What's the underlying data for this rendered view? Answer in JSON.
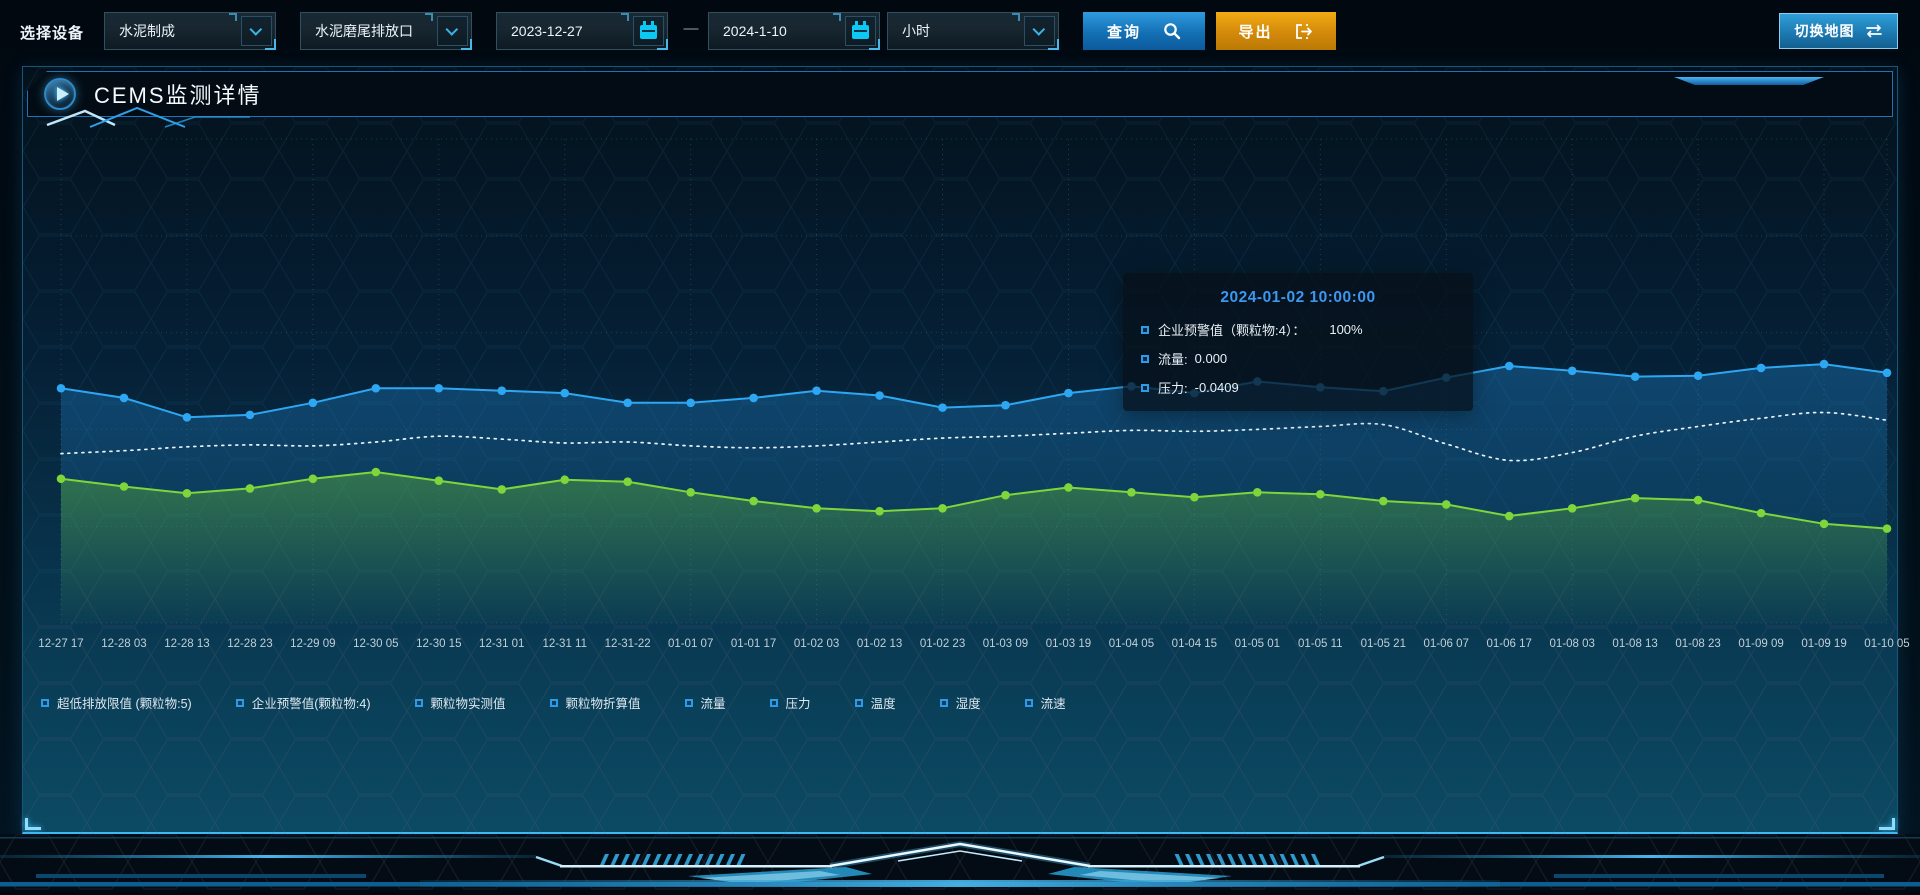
{
  "toolbar": {
    "device_label": "选择设备",
    "device_type": {
      "value": "水泥制成"
    },
    "outlet": {
      "value": "水泥磨尾排放口"
    },
    "date_start": "2023-12-27",
    "date_separator": "—",
    "date_end": "2024-1-10",
    "interval": {
      "value": "小时"
    },
    "query_label": "查询",
    "export_label": "导出",
    "switch_map_label": "切换地图"
  },
  "panel": {
    "title": "CEMS监测详情"
  },
  "tooltip": {
    "title": "2024-01-02 10:00:00",
    "items": [
      {
        "label": "企业预警值（颗粒物:4）：",
        "value": "100%"
      },
      {
        "label": "流量:",
        "value": "0.000"
      },
      {
        "label": "压力:",
        "value": "-0.0409"
      }
    ]
  },
  "legend": [
    "超低排放限值 (颗粒物:5)",
    "企业预警值(颗粒物:4)",
    "颗粒物实测值",
    "颗粒物折算值",
    "流量",
    "压力",
    "温度",
    "湿度",
    "流速"
  ],
  "chart_data": {
    "type": "line",
    "title": "CEMS监测详情",
    "x_labels": [
      "12-27 17",
      "12-28 03",
      "12-28 13",
      "12-28 23",
      "12-29 09",
      "12-30 05",
      "12-30 15",
      "12-31 01",
      "12-31 11",
      "12-31-22",
      "01-01 07",
      "01-01 17",
      "01-02 03",
      "01-02 13",
      "01-02 23",
      "01-03 09",
      "01-03 19",
      "01-04 05",
      "01-04 15",
      "01-05 01",
      "01-05 11",
      "01-05 21",
      "01-06 07",
      "01-06 17",
      "01-08 03",
      "01-08 13",
      "01-08 23",
      "01-09 09",
      "01-09 19",
      "01-10 05"
    ],
    "y_axis_labels_visible": false,
    "grid": "dotted",
    "legend_position": "bottom",
    "series": [
      {
        "name": "企业预警值(颗粒物:4)",
        "color": "#2ea7f2",
        "line_style": "solid",
        "markers": true,
        "area_fill": true,
        "values_pct_plot_height": [
          48.5,
          46.5,
          42.5,
          43,
          45.5,
          48.5,
          48.5,
          48,
          47.5,
          45.5,
          45.5,
          46.5,
          48,
          47,
          44.5,
          45,
          47.5,
          48.9,
          47.5,
          49.9,
          48.7,
          47.9,
          50.7,
          53.1,
          52.1,
          50.9,
          51.1,
          52.7,
          53.5,
          51.7
        ]
      },
      {
        "name": "流量",
        "color": "#e9f2f6",
        "line_style": "dotted",
        "markers": false,
        "area_fill": false,
        "values_pct_plot_height": [
          35,
          35.6,
          36.4,
          36.8,
          36.6,
          37.4,
          38.6,
          38,
          37.2,
          37.4,
          36.6,
          36.2,
          36.6,
          37.4,
          38.2,
          38.6,
          39.2,
          39.8,
          39.6,
          40,
          40.6,
          41,
          37,
          33.6,
          35.2,
          38.6,
          40.6,
          42.3,
          43.5,
          41.9
        ]
      },
      {
        "name": "压力",
        "color": "#7ed63a",
        "line_style": "solid",
        "markers": true,
        "area_fill": true,
        "values_pct_plot_height": [
          29.8,
          28.2,
          26.8,
          27.8,
          29.8,
          31.2,
          29.4,
          27.6,
          29.6,
          29.2,
          27,
          25.2,
          23.7,
          23.1,
          23.7,
          26.4,
          28,
          27,
          26,
          27,
          26.6,
          25.2,
          24.5,
          22.1,
          23.7,
          25.8,
          25.4,
          22.7,
          20.5,
          19.5
        ]
      }
    ],
    "tooltip_point": {
      "timestamp": "2024-01-02 10:00:00",
      "企业预警值(颗粒物:4)": "100%",
      "流量": "0.000",
      "压力": "-0.0409"
    }
  },
  "colors": {
    "accent_cyan": "#35b5f0",
    "query_button_blue": "#1470b4",
    "export_button_orange": "#d3890a",
    "line_blue": "#2ea7f2",
    "line_white_dotted": "#e9f2f6",
    "line_green": "#7ed63a",
    "tooltip_title_blue": "#3b97f0",
    "legend_marker_blue": "#2e9be8"
  }
}
